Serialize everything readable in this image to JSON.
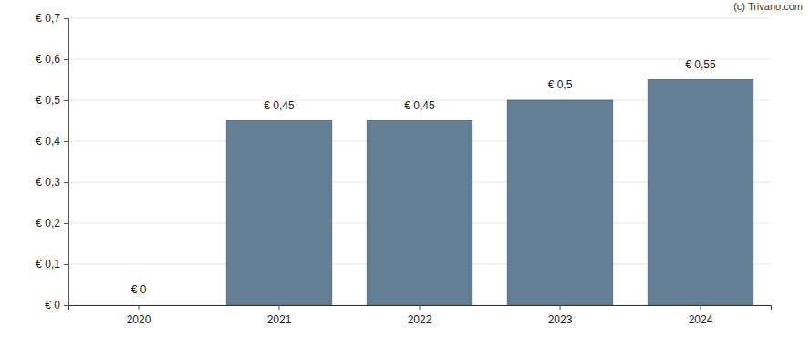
{
  "chart_data": {
    "type": "bar",
    "annotation": "(c) Trivano.com",
    "categories": [
      "2020",
      "2021",
      "2022",
      "2023",
      "2024"
    ],
    "values": [
      0,
      0.45,
      0.45,
      0.5,
      0.55
    ],
    "value_labels": [
      "€ 0",
      "€ 0,45",
      "€ 0,45",
      "€ 0,5",
      "€ 0,55"
    ],
    "color": "#647f93",
    "ylim": [
      0,
      0.7
    ],
    "yticks": [
      {
        "value": 0,
        "label": "€ 0"
      },
      {
        "value": 0.1,
        "label": "€ 0,1"
      },
      {
        "value": 0.2,
        "label": "€ 0,2"
      },
      {
        "value": 0.3,
        "label": "€ 0,3"
      },
      {
        "value": 0.4,
        "label": "€ 0,4"
      },
      {
        "value": 0.5,
        "label": "€ 0,5"
      },
      {
        "value": 0.6,
        "label": "€ 0,6"
      },
      {
        "value": 0.7,
        "label": "€ 0,7"
      }
    ],
    "grid": true,
    "data_labels": true
  }
}
